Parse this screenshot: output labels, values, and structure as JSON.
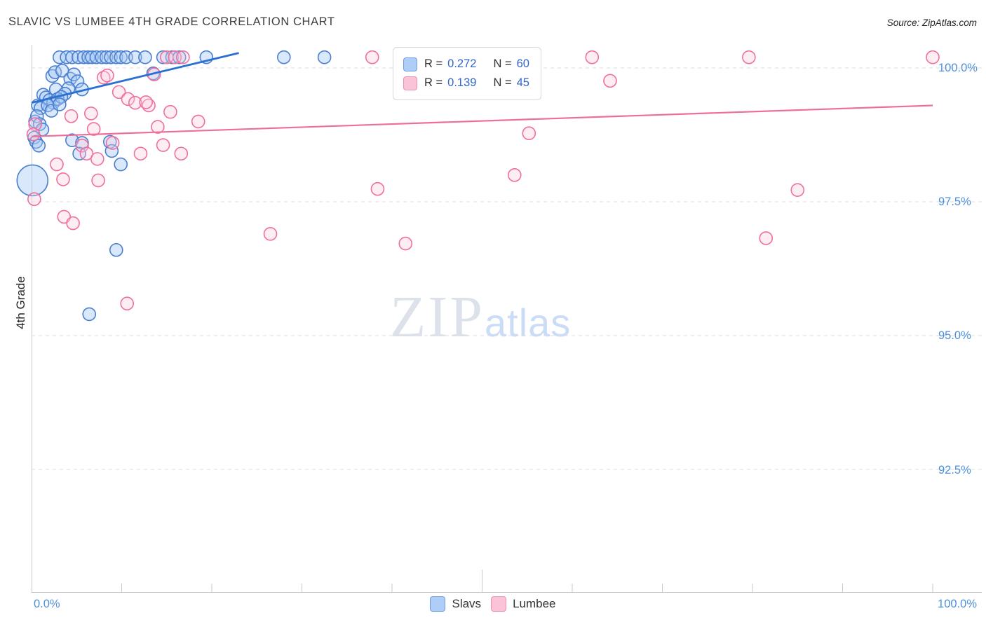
{
  "header": {
    "title": "SLAVIC VS LUMBEE 4TH GRADE CORRELATION CHART",
    "source": "Source: ZipAtlas.com"
  },
  "watermark": {
    "part1": "ZIP",
    "part2": "atlas"
  },
  "axes": {
    "ylabel": "4th Grade",
    "x_left_label": "0.0%",
    "x_right_label": "100.0%",
    "y_tick_labels": [
      "100.0%",
      "97.5%",
      "95.0%",
      "92.5%"
    ]
  },
  "legend_box": {
    "rows": [
      {
        "r_label": "R =",
        "r_value": "0.272",
        "n_label": "N =",
        "n_value": "60"
      },
      {
        "r_label": "R =",
        "r_value": "0.139",
        "n_label": "N =",
        "n_value": "45"
      }
    ]
  },
  "bottom_legend": [
    {
      "label": "Slavs"
    },
    {
      "label": "Lumbee"
    }
  ],
  "chart_data": {
    "type": "scatter",
    "title": "SLAVIC VS LUMBEE 4TH GRADE CORRELATION CHART",
    "xlabel": "",
    "ylabel": "4th Grade",
    "xlim": [
      0,
      100
    ],
    "ylim": [
      90.2,
      100.45
    ],
    "x_ticks": [
      10,
      20,
      30,
      40,
      50,
      60,
      70,
      80,
      90,
      100
    ],
    "y_grid": [
      100.0,
      97.5,
      95.0,
      92.5
    ],
    "grid": true,
    "legend_position": "top-center",
    "series": [
      {
        "name": "Slavs",
        "r": 0.272,
        "n": 60,
        "color": "#4a7fd0",
        "fill": "rgba(164,200,245,0.42)",
        "line": "#2a6fd2",
        "trend": {
          "x1": 0,
          "y1": 99.35,
          "x2": 23,
          "y2": 100.28
        },
        "points": [
          [
            3.1,
            100.2
          ],
          [
            3.9,
            100.2
          ],
          [
            4.5,
            100.2
          ],
          [
            5.2,
            100.2
          ],
          [
            5.8,
            100.2
          ],
          [
            6.3,
            100.2
          ],
          [
            6.7,
            100.2
          ],
          [
            7.2,
            100.2
          ],
          [
            7.8,
            100.2
          ],
          [
            8.3,
            100.2
          ],
          [
            8.8,
            100.2
          ],
          [
            9.4,
            100.2
          ],
          [
            9.9,
            100.2
          ],
          [
            10.5,
            100.2
          ],
          [
            11.5,
            100.2
          ],
          [
            12.6,
            100.2
          ],
          [
            14.6,
            100.2
          ],
          [
            15.6,
            100.2
          ],
          [
            16.4,
            100.2
          ],
          [
            19.4,
            100.2
          ],
          [
            28.0,
            100.2
          ],
          [
            32.5,
            100.2
          ],
          [
            13.5,
            99.9
          ],
          [
            2.3,
            99.85
          ],
          [
            2.6,
            99.92
          ],
          [
            3.4,
            99.95
          ],
          [
            4.3,
            99.8
          ],
          [
            4.7,
            99.88
          ],
          [
            5.1,
            99.75
          ],
          [
            4.1,
            99.62
          ],
          [
            5.6,
            99.6
          ],
          [
            2.7,
            99.6
          ],
          [
            3.7,
            99.52
          ],
          [
            1.3,
            99.5
          ],
          [
            1.6,
            99.45
          ],
          [
            2.0,
            99.4
          ],
          [
            2.4,
            99.35
          ],
          [
            2.9,
            99.42
          ],
          [
            3.3,
            99.46
          ],
          [
            0.7,
            99.3
          ],
          [
            1.0,
            99.25
          ],
          [
            1.8,
            99.3
          ],
          [
            2.2,
            99.2
          ],
          [
            3.1,
            99.32
          ],
          [
            0.4,
            99.0
          ],
          [
            0.6,
            99.1
          ],
          [
            0.9,
            98.95
          ],
          [
            1.2,
            98.85
          ],
          [
            0.3,
            98.7
          ],
          [
            0.5,
            98.62
          ],
          [
            0.8,
            98.55
          ],
          [
            4.5,
            98.65
          ],
          [
            5.6,
            98.6
          ],
          [
            8.7,
            98.62
          ],
          [
            8.9,
            98.45
          ],
          [
            9.9,
            98.2
          ],
          [
            5.3,
            98.4
          ],
          [
            0.1,
            97.9,
            22
          ],
          [
            9.4,
            96.6
          ],
          [
            6.4,
            95.4
          ]
        ]
      },
      {
        "name": "Lumbee",
        "r": 0.139,
        "n": 45,
        "color": "#ef6f9f",
        "fill": "rgba(252,205,222,0.35)",
        "line": "#ee6e96",
        "trend": {
          "x1": 0,
          "y1": 98.72,
          "x2": 100,
          "y2": 99.3
        },
        "points": [
          [
            15.0,
            100.2
          ],
          [
            15.9,
            100.2
          ],
          [
            16.8,
            100.2
          ],
          [
            37.8,
            100.2
          ],
          [
            62.2,
            100.2
          ],
          [
            79.6,
            100.2
          ],
          [
            100,
            100.2
          ],
          [
            13.6,
            99.88
          ],
          [
            8.0,
            99.82
          ],
          [
            8.4,
            99.86
          ],
          [
            64.2,
            99.76
          ],
          [
            9.7,
            99.55
          ],
          [
            10.7,
            99.42
          ],
          [
            11.5,
            99.35
          ],
          [
            13.0,
            99.3
          ],
          [
            12.7,
            99.36
          ],
          [
            15.4,
            99.18
          ],
          [
            4.4,
            99.1
          ],
          [
            6.6,
            99.15
          ],
          [
            18.5,
            99.0
          ],
          [
            6.9,
            98.86
          ],
          [
            14.0,
            98.9
          ],
          [
            0.4,
            98.95
          ],
          [
            55.2,
            98.78
          ],
          [
            0.2,
            98.76
          ],
          [
            5.6,
            98.55
          ],
          [
            9.0,
            98.6
          ],
          [
            14.6,
            98.56
          ],
          [
            6.1,
            98.4
          ],
          [
            12.1,
            98.4
          ],
          [
            16.6,
            98.4
          ],
          [
            7.3,
            98.3
          ],
          [
            2.8,
            98.2
          ],
          [
            53.6,
            98.0
          ],
          [
            3.5,
            97.92
          ],
          [
            7.4,
            97.9
          ],
          [
            0.3,
            97.55
          ],
          [
            38.4,
            97.74
          ],
          [
            85.0,
            97.72
          ],
          [
            3.6,
            97.22
          ],
          [
            4.6,
            97.1
          ],
          [
            26.5,
            96.9
          ],
          [
            41.5,
            96.72
          ],
          [
            81.5,
            96.82
          ],
          [
            10.6,
            95.6
          ]
        ]
      }
    ]
  }
}
